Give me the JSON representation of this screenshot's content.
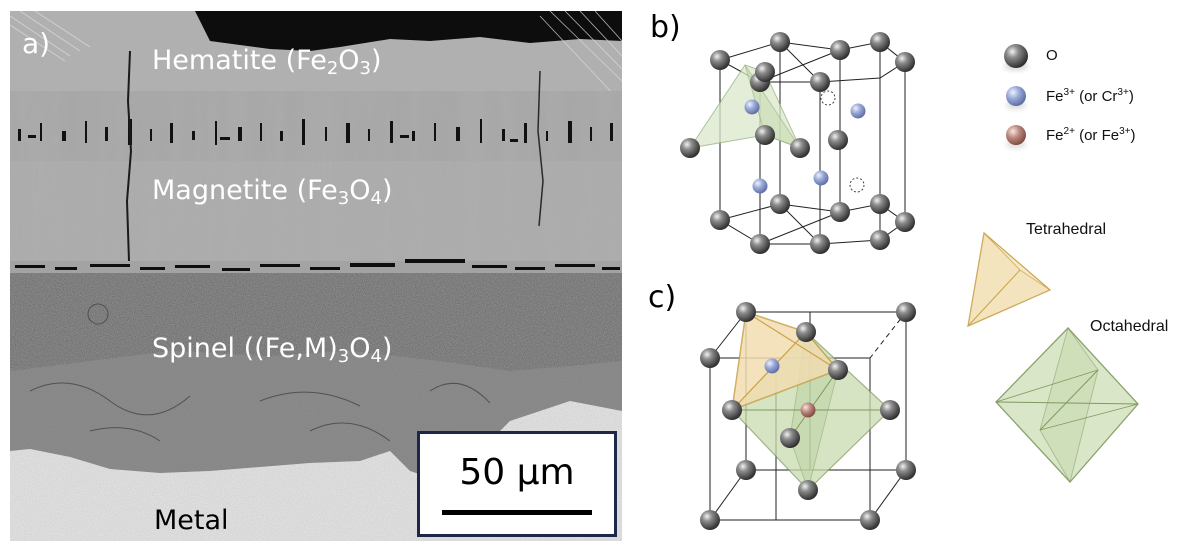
{
  "panel_a": {
    "letter": "a)",
    "layers": {
      "hematite": {
        "name": "Hematite (Fe",
        "sub1": "2",
        "mid": "O",
        "sub2": "3",
        "end": ")"
      },
      "magnetite": {
        "name": "Magnetite (Fe",
        "sub1": "3",
        "mid": "O",
        "sub2": "4",
        "end": ")"
      },
      "spinel": {
        "name": "Spinel ((Fe,M)",
        "sub1": "3",
        "mid": "O",
        "sub2": "4",
        "end": ")"
      },
      "metal": {
        "name": "Metal"
      }
    },
    "scale_bar": "50 µm"
  },
  "panel_b": {
    "letter": "b)"
  },
  "panel_c": {
    "letter": "c)"
  },
  "legend": {
    "oxygen": {
      "label": "O"
    },
    "fe3": {
      "label_a": "Fe",
      "sup_a": "3+",
      "label_b": " (or Cr",
      "sup_b": "3+",
      "label_c": ")"
    },
    "fe2": {
      "label_a": "Fe",
      "sup_a": "2+",
      "label_b": " (or Fe",
      "sup_b": "3+",
      "label_c": ")"
    }
  },
  "polyhedra": {
    "tetrahedral": "Tetrahedral",
    "octahedral": "Octahedral"
  },
  "colors": {
    "oxygen_atom": "#4a4a4a",
    "fe3_atom": "#8e9fd1",
    "fe2_atom": "#b77b73",
    "tetrahedral_fill": "#f1ddb0",
    "tetrahedral_edge": "#c9a24a",
    "octahedral_fill": "#d7e4c3",
    "octahedral_edge": "#7f9a5e",
    "scale_border": "#1e2747"
  }
}
